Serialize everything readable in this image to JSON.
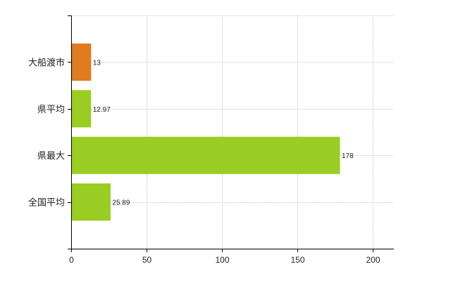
{
  "chart_data": {
    "type": "bar",
    "orientation": "horizontal",
    "categories": [
      "大船渡市",
      "県平均",
      "県最大",
      "全国平均"
    ],
    "values": [
      13,
      12.97,
      178,
      25.89
    ],
    "value_labels": [
      "13",
      "12.97",
      "178",
      "25.89"
    ],
    "colors": [
      "#E07B1F",
      "#9ACD22",
      "#9ACD22",
      "#9ACD22"
    ],
    "xlim": [
      0,
      214
    ],
    "xticks": [
      0,
      50,
      100,
      150,
      200
    ],
    "grid": true,
    "grid_style": "dotted",
    "legend": "none",
    "title": "",
    "xlabel": "",
    "ylabel": ""
  }
}
